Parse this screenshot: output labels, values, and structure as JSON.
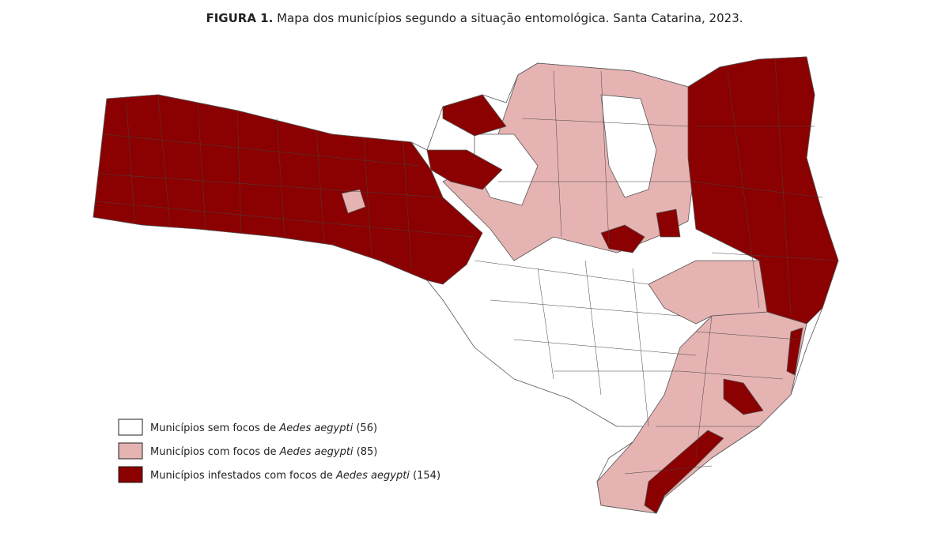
{
  "header": {
    "label": "FIGURA 1.",
    "title": "Mapa dos municípios segundo a situação entomológica. Santa Catarina, 2023."
  },
  "legend": [
    {
      "text": "Municípios sem focos de",
      "species": "Aedes aegypti",
      "count": "(56)"
    },
    {
      "text": "Municípios com focos de",
      "species": "Aedes aegypti",
      "count": "(85)"
    },
    {
      "text": "Municípios infestados com focos de",
      "species": "Aedes aegypti",
      "count": "(154)"
    }
  ]
}
